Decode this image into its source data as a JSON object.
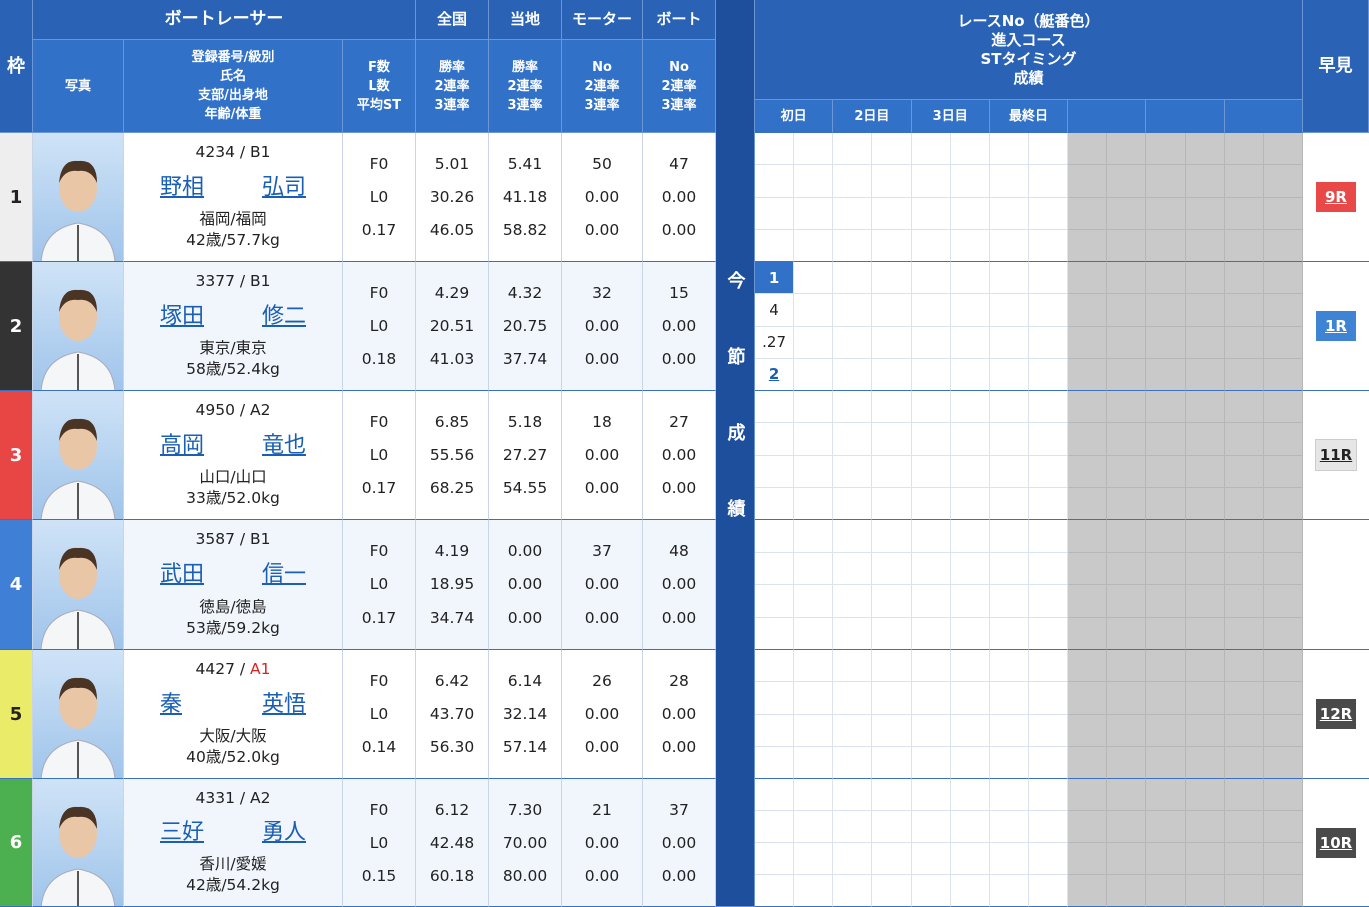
{
  "header": {
    "frame": "枠",
    "racer": "ボートレーサー",
    "photo": "写真",
    "racer_info": [
      "登録番号/級別",
      "氏名",
      "支部/出身地",
      "年齢/体重"
    ],
    "fl_st": [
      "F数",
      "L数",
      "平均ST"
    ],
    "national": {
      "title": "全国",
      "sub": [
        "勝率",
        "2連率",
        "3連率"
      ]
    },
    "local": {
      "title": "当地",
      "sub": [
        "勝率",
        "2連率",
        "3連率"
      ]
    },
    "motor": {
      "title": "モーター",
      "sub": [
        "No",
        "2連率",
        "3連率"
      ]
    },
    "boat": {
      "title": "ボート",
      "sub": [
        "No",
        "2連率",
        "3連率"
      ]
    },
    "series_results": "今節成績",
    "results_info": [
      "レースNo（艇番色）",
      "進入コース",
      "STタイミング",
      "成績"
    ],
    "days": [
      "初日",
      "2日目",
      "3日目",
      "最終日"
    ],
    "quick_view": "早見"
  },
  "racers": [
    {
      "frame": "1",
      "reg_no": "4234",
      "class": "B1",
      "family_name": "野相",
      "given_name": "弘司",
      "origin": "福岡/福岡",
      "age_weight": "42歳/57.7kg",
      "f": "F0",
      "l": "L0",
      "avg_st": "0.17",
      "national": [
        "5.01",
        "30.26",
        "46.05"
      ],
      "local": [
        "5.41",
        "41.18",
        "58.82"
      ],
      "motor": [
        "50",
        "0.00",
        "0.00"
      ],
      "boat": [
        "47",
        "0.00",
        "0.00"
      ],
      "results": [],
      "quick_view": "9R"
    },
    {
      "frame": "2",
      "reg_no": "3377",
      "class": "B1",
      "family_name": "塚田",
      "given_name": "修二",
      "origin": "東京/東京",
      "age_weight": "58歳/52.4kg",
      "f": "F0",
      "l": "L0",
      "avg_st": "0.18",
      "national": [
        "4.29",
        "20.51",
        "41.03"
      ],
      "local": [
        "4.32",
        "20.75",
        "37.74"
      ],
      "motor": [
        "32",
        "0.00",
        "0.00"
      ],
      "boat": [
        "15",
        "0.00",
        "0.00"
      ],
      "results": [
        {
          "race": "1",
          "course": "4",
          "st": ".27",
          "finish": "2"
        }
      ],
      "quick_view": "1R"
    },
    {
      "frame": "3",
      "reg_no": "4950",
      "class": "A2",
      "family_name": "高岡",
      "given_name": "竜也",
      "origin": "山口/山口",
      "age_weight": "33歳/52.0kg",
      "f": "F0",
      "l": "L0",
      "avg_st": "0.17",
      "national": [
        "6.85",
        "55.56",
        "68.25"
      ],
      "local": [
        "5.18",
        "27.27",
        "54.55"
      ],
      "motor": [
        "18",
        "0.00",
        "0.00"
      ],
      "boat": [
        "27",
        "0.00",
        "0.00"
      ],
      "results": [],
      "quick_view": "11R"
    },
    {
      "frame": "4",
      "reg_no": "3587",
      "class": "B1",
      "family_name": "武田",
      "given_name": "信一",
      "origin": "徳島/徳島",
      "age_weight": "53歳/59.2kg",
      "f": "F0",
      "l": "L0",
      "avg_st": "0.17",
      "national": [
        "4.19",
        "18.95",
        "34.74"
      ],
      "local": [
        "0.00",
        "0.00",
        "0.00"
      ],
      "motor": [
        "37",
        "0.00",
        "0.00"
      ],
      "boat": [
        "48",
        "0.00",
        "0.00"
      ],
      "results": []
    },
    {
      "frame": "5",
      "reg_no": "4427",
      "class": "A1",
      "family_name": "秦",
      "given_name": "英悟",
      "origin": "大阪/大阪",
      "age_weight": "40歳/52.0kg",
      "f": "F0",
      "l": "L0",
      "avg_st": "0.14",
      "national": [
        "6.42",
        "43.70",
        "56.30"
      ],
      "local": [
        "6.14",
        "32.14",
        "57.14"
      ],
      "motor": [
        "26",
        "0.00",
        "0.00"
      ],
      "boat": [
        "28",
        "0.00",
        "0.00"
      ],
      "results": [],
      "quick_view": "12R"
    },
    {
      "frame": "6",
      "reg_no": "4331",
      "class": "A2",
      "family_name": "三好",
      "given_name": "勇人",
      "origin": "香川/愛媛",
      "age_weight": "42歳/54.2kg",
      "f": "F0",
      "l": "L0",
      "avg_st": "0.15",
      "national": [
        "6.12",
        "42.48",
        "60.18"
      ],
      "local": [
        "7.30",
        "70.00",
        "80.00"
      ],
      "motor": [
        "21",
        "0.00",
        "0.00"
      ],
      "boat": [
        "37",
        "0.00",
        "0.00"
      ],
      "results": [],
      "quick_view": "10R"
    }
  ]
}
